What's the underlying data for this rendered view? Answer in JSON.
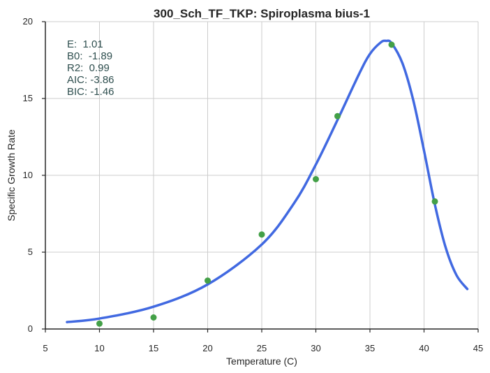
{
  "chart_data": {
    "type": "scatter",
    "title": "300_Sch_TF_TKP: Spiroplasma bius-1",
    "xlabel": "Temperature (C)",
    "ylabel": "Specific Growth Rate",
    "xlim": [
      5,
      45
    ],
    "ylim": [
      0,
      20
    ],
    "xticks": [
      "5",
      "10",
      "15",
      "20",
      "25",
      "30",
      "35",
      "40",
      "45"
    ],
    "yticks": [
      "0",
      "5",
      "10",
      "15",
      "20"
    ],
    "grid": true,
    "colors": {
      "points": "#43a047",
      "curve": "#4169e1",
      "grid": "#cccccc",
      "axis": "#262626",
      "stats": "#2f4f4f"
    },
    "series": [
      {
        "kind": "points",
        "x": [
          10,
          15,
          20,
          25,
          30,
          32,
          37,
          41
        ],
        "y": [
          0.35,
          0.75,
          3.15,
          6.15,
          9.75,
          13.85,
          18.5,
          8.3
        ]
      },
      {
        "kind": "line",
        "x": [
          7,
          10,
          15,
          20,
          25,
          28,
          30,
          32,
          34,
          35,
          36,
          36.5,
          37,
          38,
          39,
          40,
          41,
          42,
          43,
          44
        ],
        "y": [
          0.45,
          0.68,
          1.45,
          2.9,
          5.5,
          8.2,
          10.7,
          13.6,
          16.6,
          17.9,
          18.65,
          18.75,
          18.6,
          17.3,
          14.9,
          11.6,
          8.1,
          5.3,
          3.5,
          2.6
        ]
      }
    ],
    "annotations": [
      "E:  1.01",
      "B0:  -1.89",
      "R2:  0.99",
      "AIC: -3.86",
      "BIC: -1.46"
    ]
  }
}
